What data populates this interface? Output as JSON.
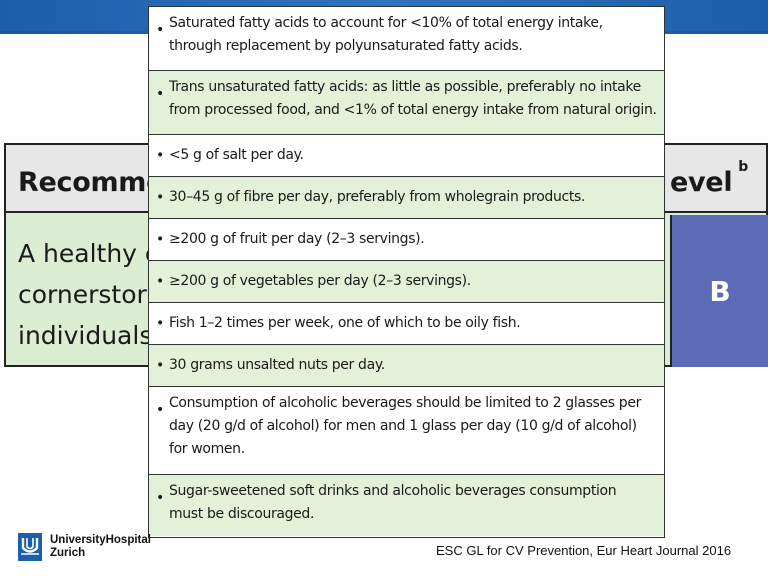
{
  "header_band_color": "#2a6db8",
  "background_table": {
    "header_left": "Recomme",
    "header_right": "evel",
    "header_right_sup": "b",
    "body_lines": [
      "A healthy c",
      "cornerstor",
      "individuals."
    ],
    "level": "B",
    "level_color": "#5c6bb5",
    "body_color": "#dbeed3"
  },
  "overlay_rows": [
    {
      "lines": [
        "Saturated fatty acids to account for <10% of total energy intake,",
        "through replacement by polyunsaturated fatty acids."
      ]
    },
    {
      "lines": [
        "Trans unsaturated fatty acids: as little as possible, preferably no intake",
        "from processed food, and <1% of total energy intake from natural origin."
      ]
    },
    {
      "lines": [
        "<5 g of salt per day."
      ]
    },
    {
      "lines": [
        "30–45 g of fibre per day, preferably from wholegrain products."
      ]
    },
    {
      "lines": [
        "≥200 g of fruit per day (2–3 servings)."
      ]
    },
    {
      "lines": [
        "≥200 g of vegetables per day (2–3 servings)."
      ]
    },
    {
      "lines": [
        "Fish 1–2 times per week, one of which to be oily fish."
      ]
    },
    {
      "lines": [
        "30 grams unsalted nuts per day."
      ]
    },
    {
      "lines": [
        "Consumption of alcoholic beverages should be limited to 2 glasses per",
        "day (20 g/d of alcohol) for men and 1 glass per day (10 g/d of alcohol)",
        "for women."
      ]
    },
    {
      "lines": [
        "Sugar-sweetened soft drinks and alcoholic beverages consumption",
        "must be discouraged."
      ]
    }
  ],
  "bullet": "•",
  "footer": {
    "logo_line1": "UniversityHospital",
    "logo_line2": "Zurich",
    "logo_icon": "university-hospital-logo",
    "citation": "ESC GL for CV Prevention, Eur Heart Journal 2016"
  }
}
